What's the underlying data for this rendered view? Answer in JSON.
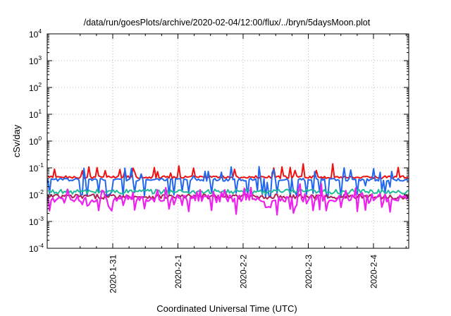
{
  "chart_data": {
    "type": "line",
    "title": "/data/run/goesPlots/archive/2020-02-04/12:00/flux/../bryn/5daysMoon.plot",
    "xlabel": "Coordinated Universal Time (UTC)",
    "ylabel": "cSv/day",
    "yscale": "log",
    "ylim": [
      0.0001,
      10000
    ],
    "ytick_exponents": [
      "-4",
      "-3",
      "-2",
      "-1",
      "0",
      "1",
      "2",
      "3",
      "4"
    ],
    "ytick_base": "10",
    "xlim": [
      "2020-01-30 12:00",
      "2020-02-04 12:00"
    ],
    "xtick_labels": [
      "2020-1-31",
      "2020-2-1",
      "2020-2-2",
      "2020-2-3",
      "2020-2-4"
    ],
    "xtick_days": [
      1,
      2,
      3,
      4,
      5
    ],
    "grid": true,
    "series": [
      {
        "color": "#ee1111",
        "base": 0.045,
        "variation": "low",
        "spikes": true
      },
      {
        "color": "#2266ee",
        "base": 0.036,
        "variation": "low",
        "spikes": true
      },
      {
        "color": "#22bb99",
        "base": 0.013,
        "variation": "mid",
        "spikes": false
      },
      {
        "color": "#aa2255",
        "base": 0.0085,
        "variation": "mid",
        "spikes": false
      },
      {
        "color": "#ee22ee",
        "base": 0.0072,
        "variation": "high",
        "spikes": true
      }
    ]
  }
}
